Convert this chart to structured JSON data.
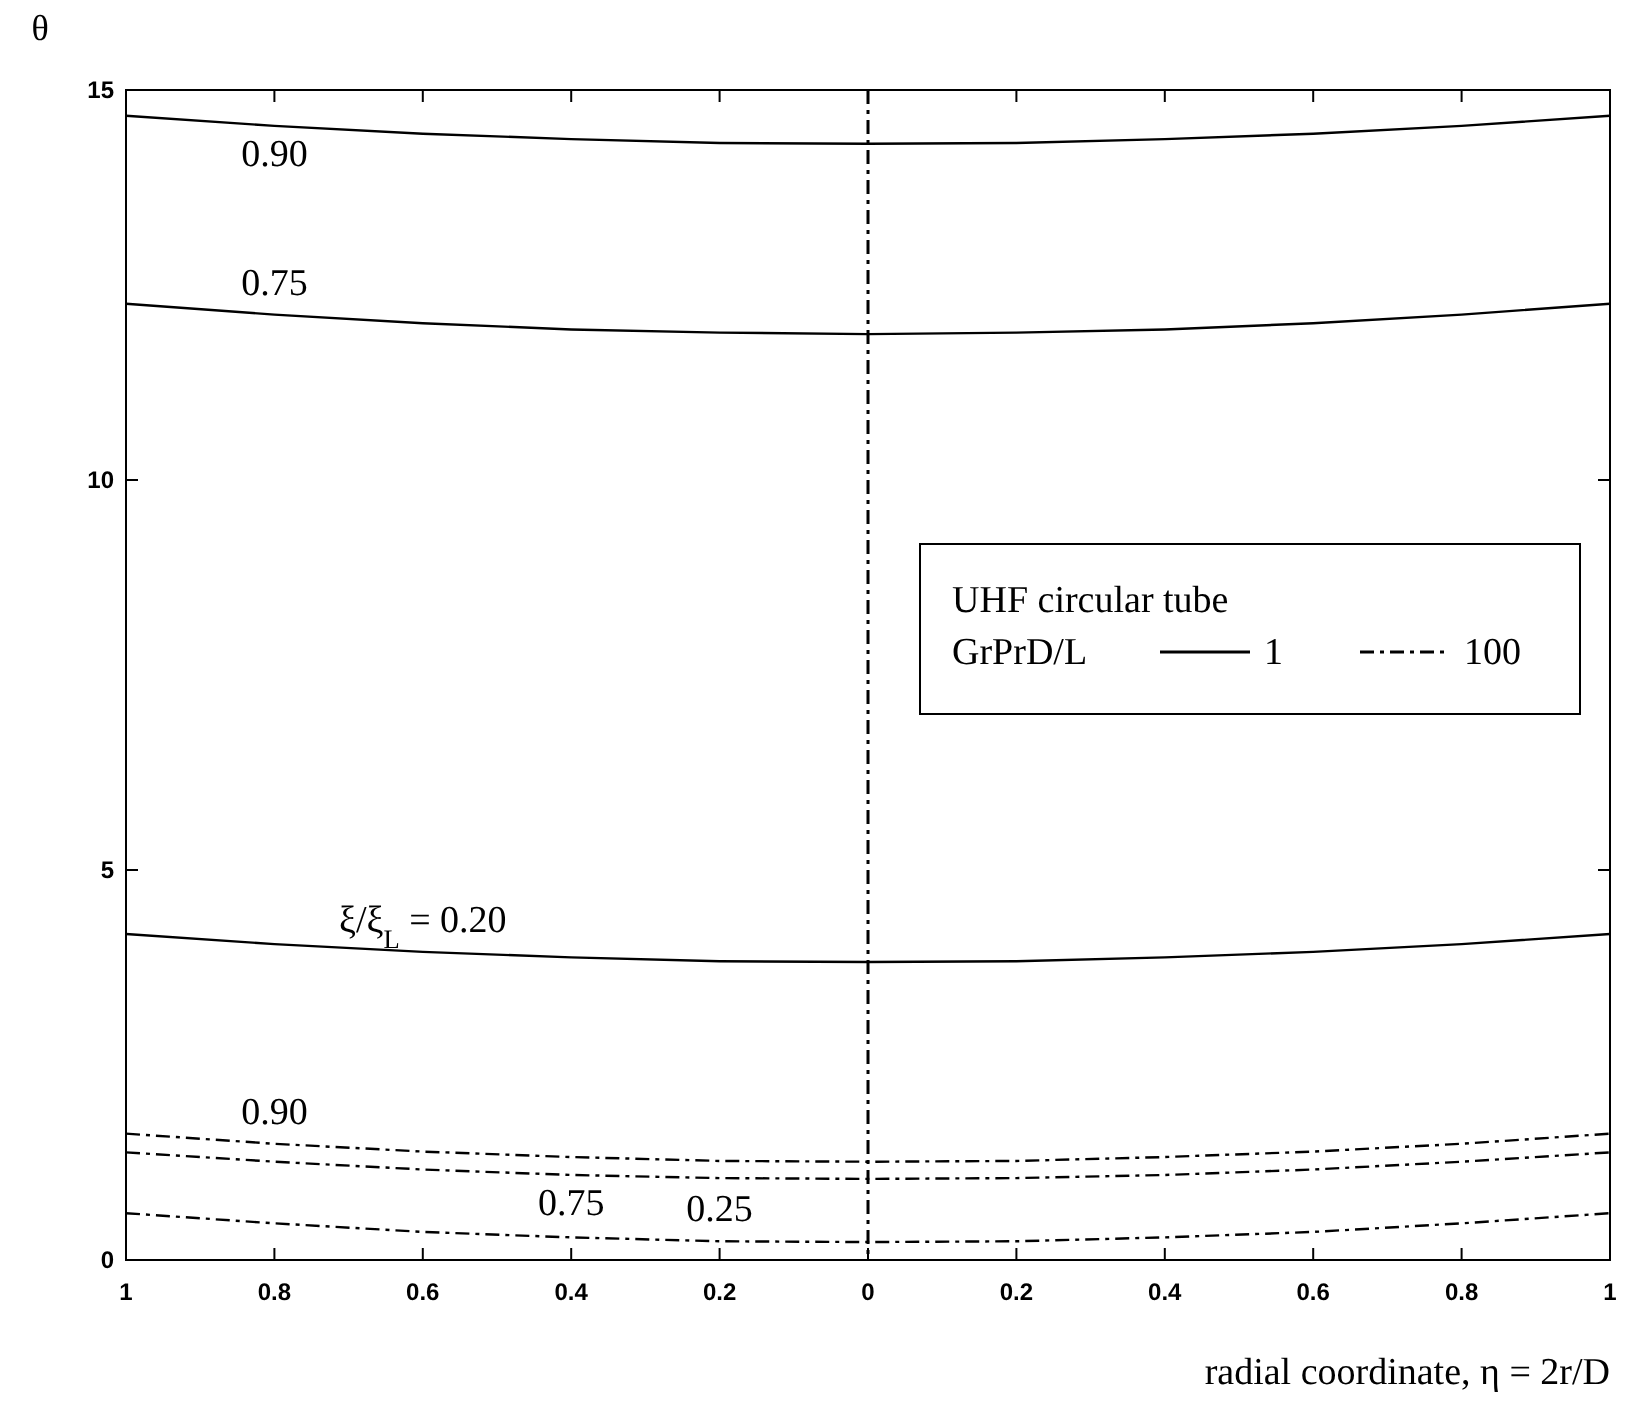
{
  "chart_data": {
    "type": "line",
    "ylabel": "θ",
    "xlabel": "radial coordinate, η = 2r/D",
    "legend_title": "UHF circular tube",
    "x": [
      -1,
      -0.8,
      -0.6,
      -0.4,
      -0.2,
      0,
      0.2,
      0.4,
      0.6,
      0.8,
      1
    ],
    "series": [
      {
        "name": "1",
        "color": "#000000",
        "line_style": "solid",
        "values": [
          14.67,
          14.54,
          14.44,
          14.37,
          14.32,
          14.31,
          14.32,
          14.37,
          14.44,
          14.54,
          14.67
        ]
      },
      {
        "color": "#000000",
        "line_style": "solid",
        "values": [
          12.26,
          12.12,
          12.01,
          11.93,
          11.89,
          11.87,
          11.89,
          11.93,
          12.01,
          12.12,
          12.26
        ]
      },
      {
        "color": "#000000",
        "line_style": "solid",
        "values": [
          4.18,
          4.05,
          3.95,
          3.88,
          3.83,
          3.82,
          3.83,
          3.88,
          3.95,
          4.05,
          4.18
        ]
      },
      {
        "name": "100",
        "color": "#000000",
        "line_style": "dashed",
        "values": [
          1.62,
          1.49,
          1.39,
          1.32,
          1.27,
          1.26,
          1.27,
          1.32,
          1.39,
          1.49,
          1.62
        ]
      },
      {
        "color": "#000000",
        "line_style": "dashed",
        "values": [
          1.38,
          1.26,
          1.16,
          1.09,
          1.05,
          1.04,
          1.05,
          1.09,
          1.16,
          1.26,
          1.38
        ]
      },
      {
        "color": "#000000",
        "line_style": "dashed",
        "values": [
          0.6,
          0.47,
          0.36,
          0.29,
          0.24,
          0.23,
          0.24,
          0.29,
          0.36,
          0.47,
          0.6
        ]
      }
    ],
    "xlim": [
      -1,
      1
    ],
    "xticks": [
      {
        "value": -1,
        "label": "1"
      },
      {
        "value": -0.8,
        "label": "0.8"
      },
      {
        "value": -0.6,
        "label": "0.6"
      },
      {
        "value": -0.4,
        "label": "0.4"
      },
      {
        "value": -0.2,
        "label": "0.2"
      },
      0,
      0.2,
      0.4,
      0.6,
      0.8,
      1
    ],
    "ylim": [
      0,
      15
    ],
    "yticks": [
      0,
      5,
      10,
      15
    ],
    "ref_lines": [
      {
        "axis": "x",
        "value": 0,
        "line_style": "dashed",
        "color": "#000000"
      }
    ],
    "annotations": [
      "GrPrD/L",
      {
        "text": "0.90",
        "x": -0.8,
        "y": 14.54
      },
      {
        "text": "0.75",
        "x": -0.8,
        "y": 12.12
      },
      {
        "text": "ξ/ξ$_{L}$ = 0.20",
        "x": -0.6,
        "y": 3.95
      },
      {
        "text": "0.90",
        "x": -0.8,
        "y": 1.49
      },
      {
        "text": "0.75",
        "x": -0.4,
        "y": 1.09
      },
      {
        "text": "0.25",
        "x": -0.2,
        "y": 0.24
      }
    ],
    "legend": "right",
    "grid": false
  }
}
